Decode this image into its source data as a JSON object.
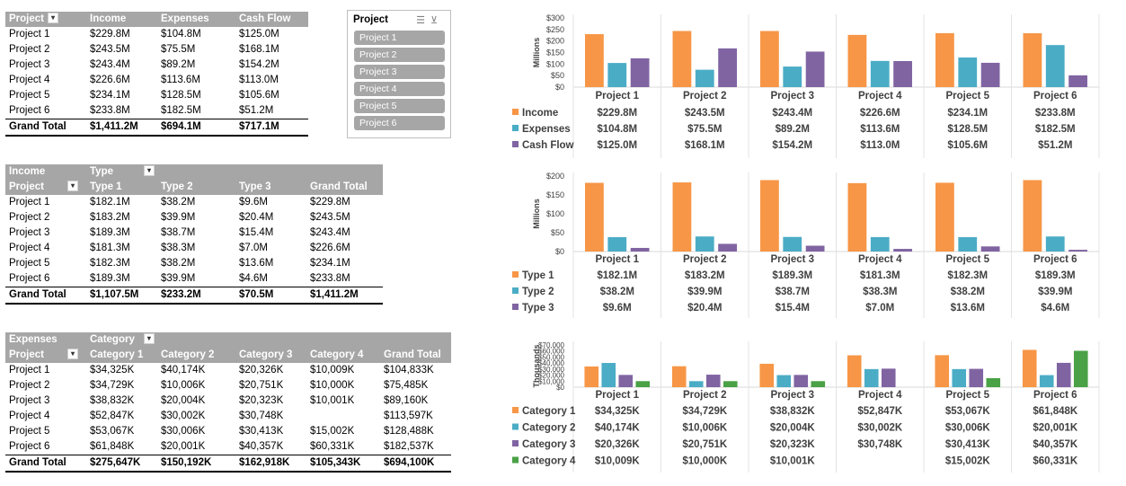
{
  "pivot1": {
    "headers": [
      "Project",
      "Income",
      "Expenses",
      "Cash Flow"
    ],
    "rows": [
      [
        "Project 1",
        "$229.8M",
        "$104.8M",
        "$125.0M"
      ],
      [
        "Project 2",
        "$243.5M",
        "$75.5M",
        "$168.1M"
      ],
      [
        "Project 3",
        "$243.4M",
        "$89.2M",
        "$154.2M"
      ],
      [
        "Project 4",
        "$226.6M",
        "$113.6M",
        "$113.0M"
      ],
      [
        "Project 5",
        "$234.1M",
        "$128.5M",
        "$105.6M"
      ],
      [
        "Project 6",
        "$233.8M",
        "$182.5M",
        "$51.2M"
      ]
    ],
    "total": [
      "Grand Total",
      "$1,411.2M",
      "$694.1M",
      "$717.1M"
    ]
  },
  "slicer": {
    "title": "Project",
    "items": [
      "Project 1",
      "Project 2",
      "Project 3",
      "Project 4",
      "Project 5",
      "Project 6"
    ]
  },
  "pivot2": {
    "value_label": "Income",
    "col_field": "Type",
    "headers": [
      "Project",
      "Type 1",
      "Type 2",
      "Type 3",
      "Grand Total"
    ],
    "rows": [
      [
        "Project 1",
        "$182.1M",
        "$38.2M",
        "$9.6M",
        "$229.8M"
      ],
      [
        "Project 2",
        "$183.2M",
        "$39.9M",
        "$20.4M",
        "$243.5M"
      ],
      [
        "Project 3",
        "$189.3M",
        "$38.7M",
        "$15.4M",
        "$243.4M"
      ],
      [
        "Project 4",
        "$181.3M",
        "$38.3M",
        "$7.0M",
        "$226.6M"
      ],
      [
        "Project 5",
        "$182.3M",
        "$38.2M",
        "$13.6M",
        "$234.1M"
      ],
      [
        "Project 6",
        "$189.3M",
        "$39.9M",
        "$4.6M",
        "$233.8M"
      ]
    ],
    "total": [
      "Grand Total",
      "$1,107.5M",
      "$233.2M",
      "$70.5M",
      "$1,411.2M"
    ]
  },
  "pivot3": {
    "value_label": "Expenses",
    "col_field": "Category",
    "headers": [
      "Project",
      "Category 1",
      "Category 2",
      "Category 3",
      "Category 4",
      "Grand Total"
    ],
    "rows": [
      [
        "Project 1",
        "$34,325K",
        "$40,174K",
        "$20,326K",
        "$10,009K",
        "$104,833K"
      ],
      [
        "Project 2",
        "$34,729K",
        "$10,006K",
        "$20,751K",
        "$10,000K",
        "$75,485K"
      ],
      [
        "Project 3",
        "$38,832K",
        "$20,004K",
        "$20,323K",
        "$10,001K",
        "$89,160K"
      ],
      [
        "Project 4",
        "$52,847K",
        "$30,002K",
        "$30,748K",
        "",
        "$113,597K"
      ],
      [
        "Project 5",
        "$53,067K",
        "$30,006K",
        "$30,413K",
        "$15,002K",
        "$128,488K"
      ],
      [
        "Project 6",
        "$61,848K",
        "$20,001K",
        "$40,357K",
        "$60,331K",
        "$182,537K"
      ]
    ],
    "total": [
      "Grand Total",
      "$275,647K",
      "$150,192K",
      "$162,918K",
      "$105,343K",
      "$694,100K"
    ]
  },
  "colors": {
    "orange": "#f79646",
    "teal": "#4bacc6",
    "purple": "#8064a2",
    "green": "#4aa146",
    "header_gray": "#a6a6a6"
  },
  "chart_data": [
    {
      "type": "bar",
      "ylabel": "Millions",
      "ylim": [
        0,
        300
      ],
      "yticks": [
        "$0",
        "$50",
        "$100",
        "$150",
        "$200",
        "$250",
        "$300"
      ],
      "categories": [
        "Project 1",
        "Project 2",
        "Project 3",
        "Project 4",
        "Project 5",
        "Project 6"
      ],
      "series": [
        {
          "name": "Income",
          "values": [
            229.8,
            243.5,
            243.4,
            226.6,
            234.1,
            233.8
          ],
          "labels": [
            "$229.8M",
            "$243.5M",
            "$243.4M",
            "$226.6M",
            "$234.1M",
            "$233.8M"
          ]
        },
        {
          "name": "Expenses",
          "values": [
            104.8,
            75.5,
            89.2,
            113.6,
            128.5,
            182.5
          ],
          "labels": [
            "$104.8M",
            "$75.5M",
            "$89.2M",
            "$113.6M",
            "$128.5M",
            "$182.5M"
          ]
        },
        {
          "name": "Cash Flow",
          "values": [
            125.0,
            168.1,
            154.2,
            113.0,
            105.6,
            51.2
          ],
          "labels": [
            "$125.0M",
            "$168.1M",
            "$154.2M",
            "$113.0M",
            "$105.6M",
            "$51.2M"
          ]
        }
      ]
    },
    {
      "type": "bar",
      "ylabel": "Millions",
      "ylim": [
        0,
        200
      ],
      "yticks": [
        "$0",
        "$50",
        "$100",
        "$150",
        "$200"
      ],
      "categories": [
        "Project 1",
        "Project 2",
        "Project 3",
        "Project 4",
        "Project 5",
        "Project 6"
      ],
      "series": [
        {
          "name": "Type 1",
          "values": [
            182.1,
            183.2,
            189.3,
            181.3,
            182.3,
            189.3
          ],
          "labels": [
            "$182.1M",
            "$183.2M",
            "$189.3M",
            "$181.3M",
            "$182.3M",
            "$189.3M"
          ]
        },
        {
          "name": "Type 2",
          "values": [
            38.2,
            39.9,
            38.7,
            38.3,
            38.2,
            39.9
          ],
          "labels": [
            "$38.2M",
            "$39.9M",
            "$38.7M",
            "$38.3M",
            "$38.2M",
            "$39.9M"
          ]
        },
        {
          "name": "Type 3",
          "values": [
            9.6,
            20.4,
            15.4,
            7.0,
            13.6,
            4.6
          ],
          "labels": [
            "$9.6M",
            "$20.4M",
            "$15.4M",
            "$7.0M",
            "$13.6M",
            "$4.6M"
          ]
        }
      ]
    },
    {
      "type": "bar",
      "ylabel": "Thousands",
      "ylim": [
        0,
        70000
      ],
      "yticks": [
        "$0",
        "$10,000",
        "$20,000",
        "$30,000",
        "$40,000",
        "$50,000",
        "$60,000",
        "$70,000"
      ],
      "categories": [
        "Project 1",
        "Project 2",
        "Project 3",
        "Project 4",
        "Project 5",
        "Project 6"
      ],
      "series": [
        {
          "name": "Category 1",
          "values": [
            34325,
            34729,
            38832,
            52847,
            53067,
            61848
          ],
          "labels": [
            "$34,325K",
            "$34,729K",
            "$38,832K",
            "$52,847K",
            "$53,067K",
            "$61,848K"
          ]
        },
        {
          "name": "Category 2",
          "values": [
            40174,
            10006,
            20004,
            30002,
            30006,
            20001
          ],
          "labels": [
            "$40,174K",
            "$10,006K",
            "$20,004K",
            "$30,002K",
            "$30,006K",
            "$20,001K"
          ]
        },
        {
          "name": "Category 3",
          "values": [
            20326,
            20751,
            20323,
            30748,
            30413,
            40357
          ],
          "labels": [
            "$20,326K",
            "$20,751K",
            "$20,323K",
            "$30,748K",
            "$30,413K",
            "$40,357K"
          ]
        },
        {
          "name": "Category 4",
          "values": [
            10009,
            10000,
            10001,
            0,
            15002,
            60331
          ],
          "labels": [
            "$10,009K",
            "$10,000K",
            "$10,001K",
            "",
            "$15,002K",
            "$60,331K"
          ]
        }
      ]
    }
  ]
}
